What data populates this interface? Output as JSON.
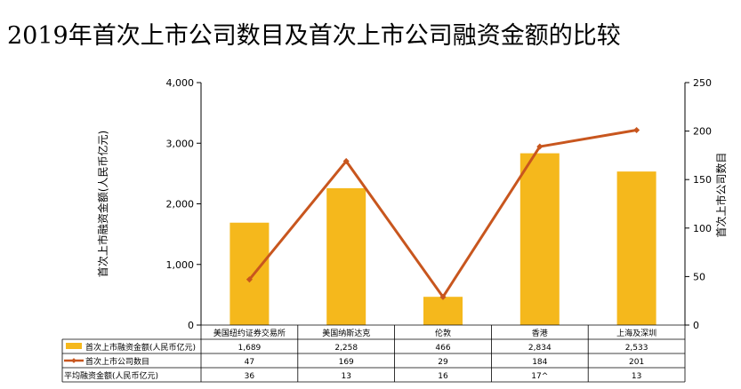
{
  "title": "2019年首次上市公司数目及首次上市公司融资金额的比较",
  "chart_data": {
    "type": "bar",
    "categories": [
      "美国纽约证券交易所",
      "美国纳斯达克",
      "伦敦",
      "香港",
      "上海及深圳"
    ],
    "series": [
      {
        "name": "首次上市融资金额(人民币亿元)",
        "type": "bar",
        "axis": "left",
        "color": "#F5B81C",
        "values": [
          1689,
          2258,
          466,
          2834,
          2533
        ],
        "labels": [
          "1,689",
          "2,258",
          "466",
          "2,834",
          "2,533"
        ]
      },
      {
        "name": "首次上市公司数目",
        "type": "line",
        "axis": "right",
        "color": "#C8561E",
        "values": [
          47,
          169,
          29,
          184,
          201
        ],
        "labels": [
          "47",
          "169",
          "29",
          "184",
          "201"
        ]
      }
    ],
    "table_extra_row": {
      "name": "平均融资金额(人民币亿元)",
      "labels": [
        "36",
        "13",
        "16",
        "17^",
        "13"
      ]
    },
    "y_left": {
      "label": "首次上市融资金额(人民币亿元)",
      "min": 0,
      "max": 4000,
      "ticks": [
        0,
        1000,
        2000,
        3000,
        4000
      ],
      "tick_labels": [
        "0",
        "1,000",
        "2,000",
        "3,000",
        "4,000"
      ]
    },
    "y_right": {
      "label": "首次上市公司数目",
      "min": 0,
      "max": 250,
      "ticks": [
        0,
        50,
        100,
        150,
        200,
        250
      ],
      "tick_labels": [
        "0",
        "50",
        "100",
        "150",
        "200",
        "250"
      ]
    },
    "grid": false,
    "legend": "data-table-below"
  }
}
